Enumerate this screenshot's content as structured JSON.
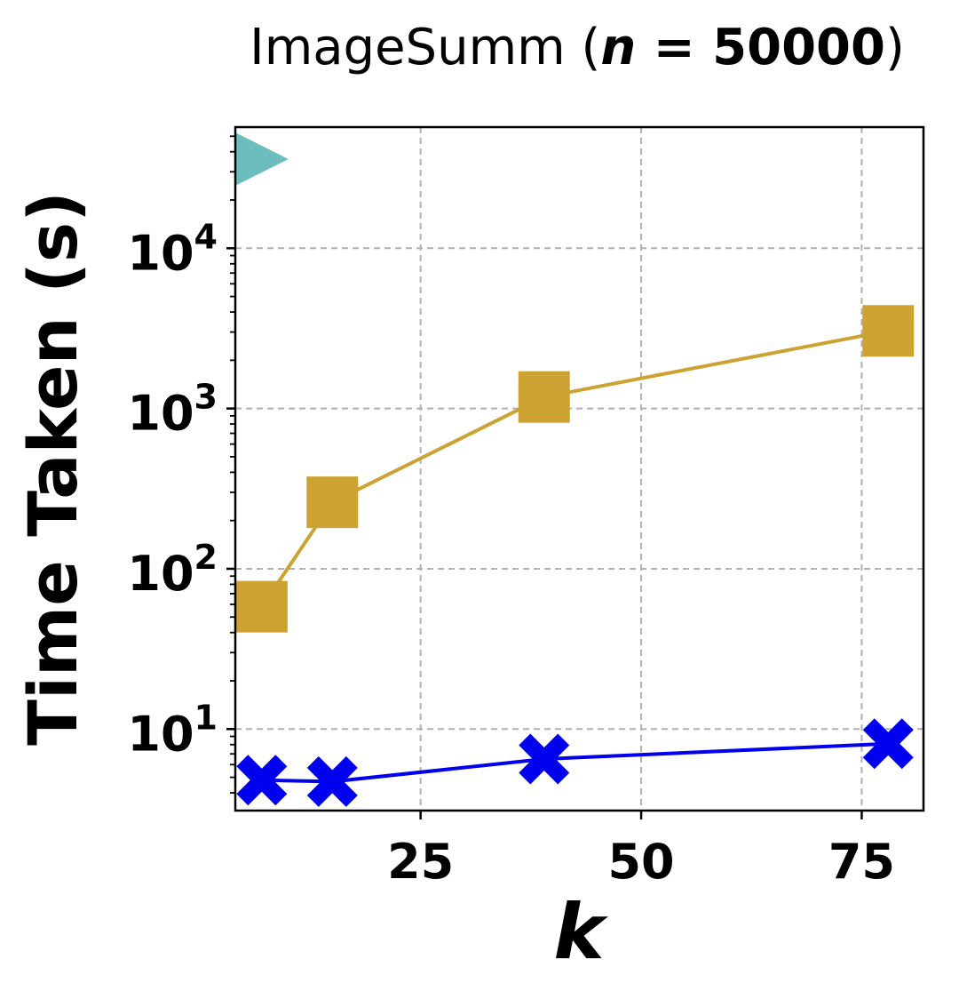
{
  "chart_data": {
    "type": "line",
    "title": {
      "prefix": "ImageSumm (",
      "n_symbol": "n",
      "equals": " = ",
      "n_value": "50000",
      "suffix": ")"
    },
    "xlabel": "k",
    "ylabel": "Time Taken (s)",
    "xlim": [
      4,
      82
    ],
    "ylim": [
      3.1,
      57000
    ],
    "yscale": "log",
    "xticks": [
      25,
      50,
      75
    ],
    "xtick_labels": [
      "25",
      "50",
      "75"
    ],
    "yticks": [
      10,
      100,
      1000,
      10000
    ],
    "ytick_labels": [
      {
        "base": "10",
        "exp": "1"
      },
      {
        "base": "10",
        "exp": "2"
      },
      {
        "base": "10",
        "exp": "3"
      },
      {
        "base": "10",
        "exp": "4"
      }
    ],
    "grid": true,
    "series": [
      {
        "marker": "square",
        "color": "#CCA332",
        "x": [
          7,
          15,
          39,
          78
        ],
        "y": [
          58,
          260,
          1180,
          3050
        ]
      },
      {
        "marker": "x",
        "color": "#0000EE",
        "x": [
          7,
          15,
          39,
          78
        ],
        "y": [
          4.8,
          4.7,
          6.5,
          8.1
        ]
      },
      {
        "marker": "triangle-right",
        "color": "#6BBDBE",
        "x": [
          7
        ],
        "y": [
          36000
        ],
        "line": false
      }
    ]
  }
}
